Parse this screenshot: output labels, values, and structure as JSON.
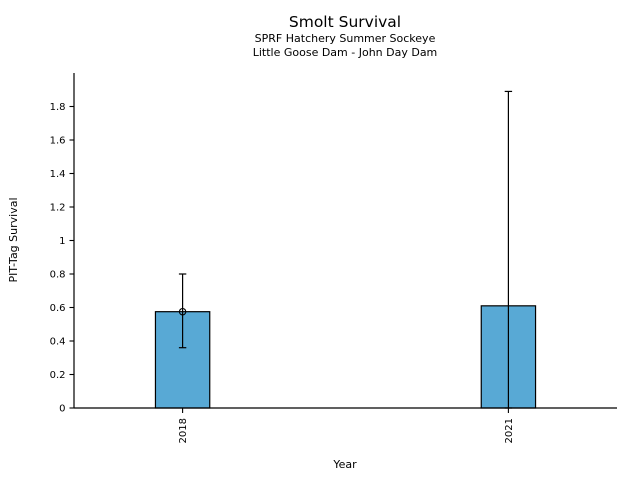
{
  "chart_data": {
    "type": "bar",
    "title": "Smolt Survival",
    "subtitle1": "SPRF Hatchery Summer Sockeye",
    "subtitle2": "Little Goose Dam - John Day Dam",
    "xlabel": "Year",
    "ylabel": "PIT-Tag Survival",
    "categories": [
      "2018",
      "2021"
    ],
    "x_numeric": [
      2018,
      2021
    ],
    "xlim": [
      2017,
      2022
    ],
    "values": [
      0.575,
      0.61
    ],
    "error_low": [
      0.36,
      0.0
    ],
    "error_high": [
      0.8,
      1.89
    ],
    "point_marker": [
      true,
      false
    ],
    "yticks": [
      0,
      0.2,
      0.4,
      0.6,
      0.8,
      1,
      1.2,
      1.4,
      1.6,
      1.8
    ],
    "ytick_labels": [
      "0",
      "0.2",
      "0.4",
      "0.6",
      "0.8",
      "1",
      "1.2",
      "1.4",
      "1.6",
      "1.8"
    ],
    "ylim": [
      0,
      2.0
    ],
    "bar_width_units": 0.5,
    "bar_color": "#58a9d5",
    "edge_color": "#000000",
    "grid": false,
    "legend": null
  }
}
